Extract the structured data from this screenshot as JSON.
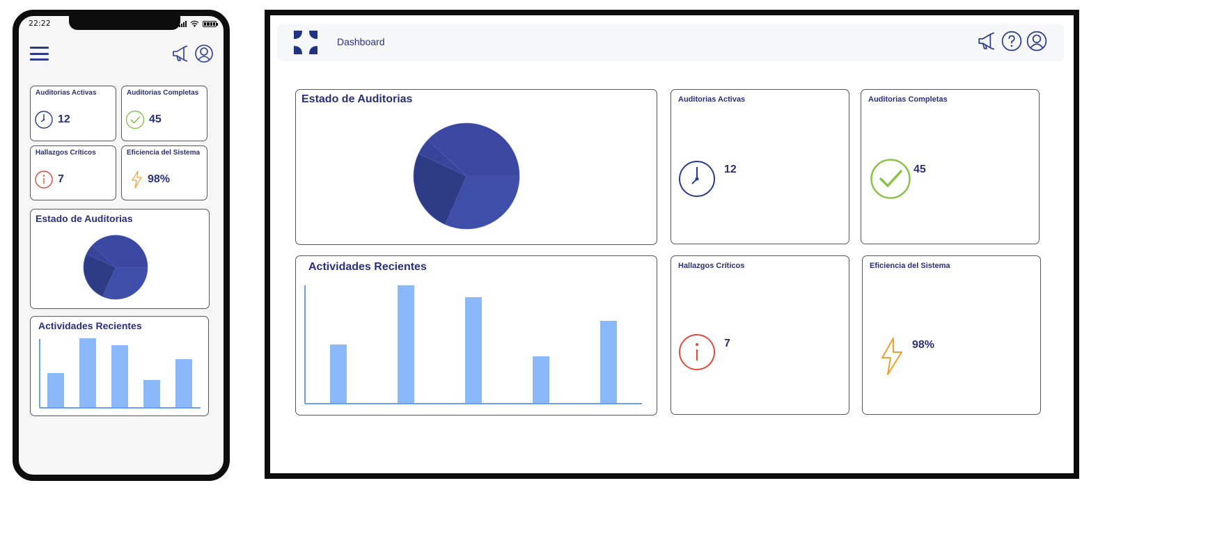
{
  "phone": {
    "status_time": "22:22",
    "stats": [
      {
        "title": "Auditorias Activas",
        "value": "12",
        "icon": "clock-icon"
      },
      {
        "title": "Auditorias Completas",
        "value": "45",
        "icon": "check-circle-icon"
      },
      {
        "title": "Hallazgos Críticos",
        "value": "7",
        "icon": "info-icon"
      },
      {
        "title": "Eficiencia del Sistema",
        "value": "98%",
        "icon": "lightning-icon"
      }
    ],
    "pie_title": "Estado de Auditorias",
    "bar_title": "Actividades Recientes"
  },
  "desktop": {
    "page_title": "Dashboard",
    "pie_title": "Estado de Auditorias",
    "bar_title": "Actividades Recientes",
    "stats": [
      {
        "title": "Auditorias Activas",
        "value": "12",
        "icon": "clock-icon"
      },
      {
        "title": "Auditorias Completas",
        "value": "45",
        "icon": "check-circle-icon"
      },
      {
        "title": "Hallazgos Críticos",
        "value": "7",
        "icon": "info-icon"
      },
      {
        "title": "Eficiencia del Sistema",
        "value": "98%",
        "icon": "lightning-icon"
      }
    ],
    "topbar_icons": [
      "megaphone-icon",
      "help-icon",
      "user-icon"
    ]
  },
  "colors": {
    "primary_text": "#2a2f7a",
    "pie_slices": [
      "#3f4ea8",
      "#2e3b85",
      "#36449a",
      "#3a48a2"
    ],
    "bar": "#8ab8f9",
    "axis": "#6a9ff0",
    "clock": "#2a3a8f",
    "check": "#8bc34a",
    "alert": "#e14b3b",
    "lightning": "#f0a02e"
  },
  "chart_data": [
    {
      "type": "pie",
      "title": "Estado de Auditorias",
      "values": [
        25,
        20,
        4,
        30
      ]
    },
    {
      "type": "bar",
      "title": "Actividades Recientes",
      "categories": [
        "",
        "",
        "",
        "",
        ""
      ],
      "values": [
        50,
        100,
        90,
        40,
        70
      ],
      "ylim": [
        0,
        100
      ]
    }
  ]
}
